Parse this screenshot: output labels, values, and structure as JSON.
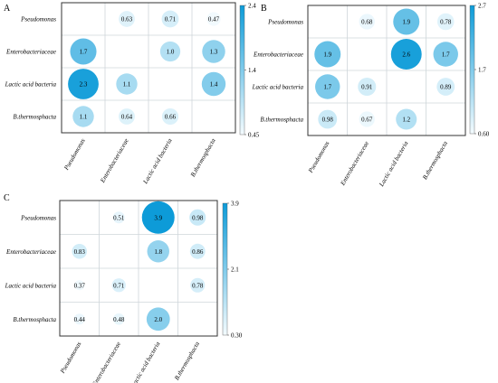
{
  "chart_data": [
    {
      "panel": "A",
      "type": "heatmap",
      "rows": [
        "Pseudomonas",
        "Enterobacteriaceae",
        "Lactic acid bacteria",
        "B.thermosphacta"
      ],
      "cols": [
        "Pseudomonas",
        "Enterobacteriaceae",
        "Lactic acid bacteria",
        "B.thermosphacta"
      ],
      "values": [
        [
          null,
          0.63,
          0.71,
          0.47
        ],
        [
          1.7,
          null,
          1.0,
          1.3
        ],
        [
          2.3,
          1.1,
          null,
          1.4
        ],
        [
          1.1,
          0.64,
          0.66,
          null
        ]
      ],
      "labels": [
        [
          "",
          "0.63",
          "0.71",
          "0.47"
        ],
        [
          "1.7",
          "",
          "1.0",
          "1.3"
        ],
        [
          "2.3",
          "1.1",
          "",
          "1.4"
        ],
        [
          "1.1",
          "0.64",
          "0.66",
          ""
        ]
      ],
      "colorbar": {
        "min": 0.45,
        "max": 2.4,
        "ticks": [
          "2.4",
          "1.4",
          "0.45"
        ]
      }
    },
    {
      "panel": "B",
      "type": "heatmap",
      "rows": [
        "Pseudomonas",
        "Enterobacteriaceae",
        "Lactic acid bacteria",
        "B.thermosphacta"
      ],
      "cols": [
        "Pseudomonas",
        "Enterobacteriaceae",
        "Lactic acid bacteria",
        "B.thermosphacta"
      ],
      "values": [
        [
          null,
          0.68,
          1.9,
          0.78
        ],
        [
          1.9,
          null,
          2.6,
          1.7
        ],
        [
          1.7,
          0.91,
          null,
          0.89
        ],
        [
          0.98,
          0.67,
          1.2,
          null
        ]
      ],
      "labels": [
        [
          "",
          "0.68",
          "1.9",
          "0.78"
        ],
        [
          "1.9",
          "",
          "2.6",
          "1.7"
        ],
        [
          "1.7",
          "0.91",
          "",
          "0.89"
        ],
        [
          "0.98",
          "0.67",
          "1.2",
          ""
        ]
      ],
      "colorbar": {
        "min": 0.6,
        "max": 2.7,
        "ticks": [
          "2.7",
          "1.7",
          "0.60"
        ]
      }
    },
    {
      "panel": "C",
      "type": "heatmap",
      "rows": [
        "Pseudomonas",
        "Enterobacteriaceae",
        "Lactic acid bacteria",
        "B.thermosphacta"
      ],
      "cols": [
        "Pseudomonas",
        "Enterobacteriaceae",
        "Lactic acid bacteria",
        "B.thermosphacta"
      ],
      "values": [
        [
          null,
          0.51,
          3.9,
          0.98
        ],
        [
          0.83,
          null,
          1.8,
          0.86
        ],
        [
          0.37,
          0.71,
          null,
          0.78
        ],
        [
          0.44,
          0.48,
          2.0,
          null
        ]
      ],
      "labels": [
        [
          "",
          "0.51",
          "3.9",
          "0.98"
        ],
        [
          "0.83",
          "",
          "1.8",
          "0.86"
        ],
        [
          "0.37",
          "0.71",
          "",
          "0.78"
        ],
        [
          "0.44",
          "0.48",
          "2.0",
          ""
        ]
      ],
      "colorbar": {
        "min": 0.3,
        "max": 3.9,
        "ticks": [
          "3.9",
          "2.1",
          "0.30"
        ]
      }
    }
  ],
  "colors": {
    "low": "#f4fbfe",
    "high": "#0d9bd8",
    "grid": "#cfd6da",
    "frame": "#333333"
  }
}
